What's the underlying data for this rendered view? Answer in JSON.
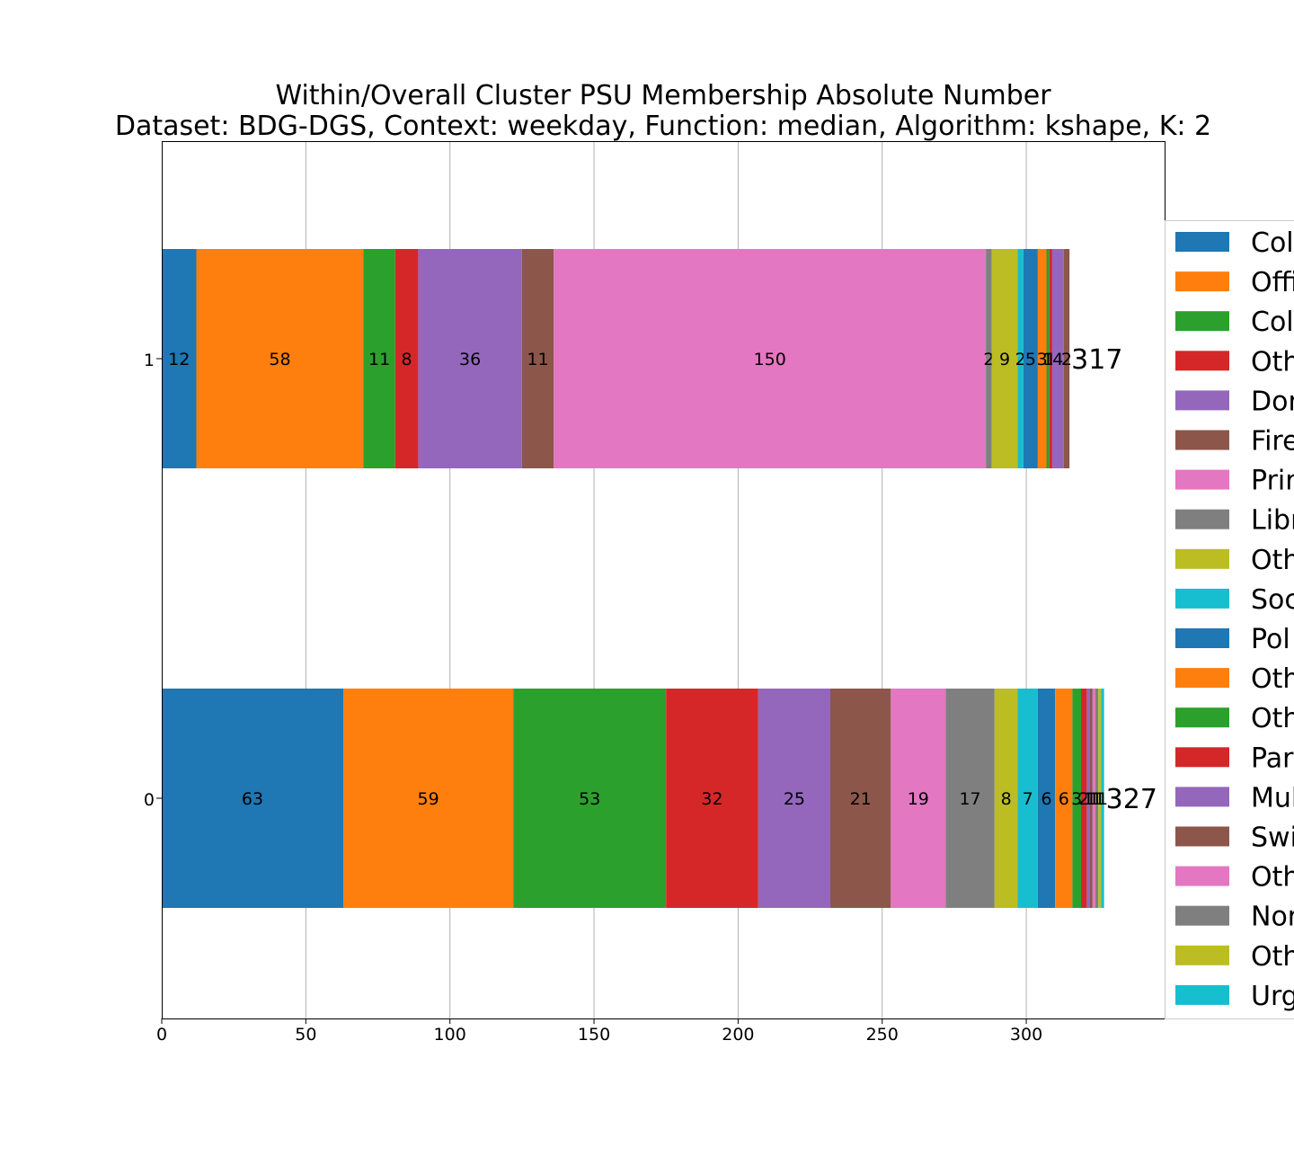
{
  "chart_data": {
    "type": "bar",
    "orientation": "horizontal",
    "stacked": true,
    "title_line1": "Within/Overall Cluster PSU Membership Absolute Number",
    "title_line2": "Dataset: BDG-DGS, Context: weekday, Function: median, Algorithm: kshape, K: 2",
    "xlabel": "",
    "ylabel": "",
    "xlim": [
      0,
      348
    ],
    "xticks": [
      0,
      50,
      100,
      150,
      200,
      250,
      300
    ],
    "grid": "vertical",
    "legend_position": "right (clipped at image edge)",
    "categories": [
      "0",
      "1"
    ],
    "colors": [
      "#1f77b4",
      "#ff7f0e",
      "#2ca02c",
      "#d62728",
      "#9467bd",
      "#8c564b",
      "#e377c2",
      "#7f7f7f",
      "#bcbd22",
      "#17becf"
    ],
    "bars": [
      {
        "category": "1",
        "total": 317,
        "total_label": "317",
        "values": [
          12,
          58,
          11,
          8,
          36,
          11,
          150,
          2,
          9,
          2,
          5,
          3,
          1,
          1,
          4,
          2
        ],
        "labels": [
          "12",
          "58",
          "11",
          "8",
          "36",
          "11",
          "150",
          "2",
          "9",
          "2",
          "5",
          "3",
          "1",
          "1",
          "4",
          "2"
        ]
      },
      {
        "category": "0",
        "total": 327,
        "total_label": "327",
        "values": [
          63,
          59,
          53,
          32,
          25,
          21,
          19,
          17,
          8,
          7,
          6,
          6,
          3,
          2,
          1,
          1,
          1,
          1,
          1,
          1
        ],
        "labels": [
          "63",
          "59",
          "53",
          "32",
          "25",
          "21",
          "19",
          "17",
          "8",
          "7",
          "6",
          "6",
          "3",
          "2",
          "1",
          "1",
          "1",
          "1",
          "1",
          "1"
        ]
      }
    ],
    "legend": [
      "Col",
      "Offi",
      "Col",
      "Oth",
      "Dor",
      "Fire",
      "Prir",
      "Libr",
      "Oth",
      "Soc",
      "Pol",
      "Oth",
      "Oth",
      "Par",
      "Mul",
      "Swi",
      "Oth",
      "Nor",
      "Oth",
      "Urg"
    ]
  }
}
